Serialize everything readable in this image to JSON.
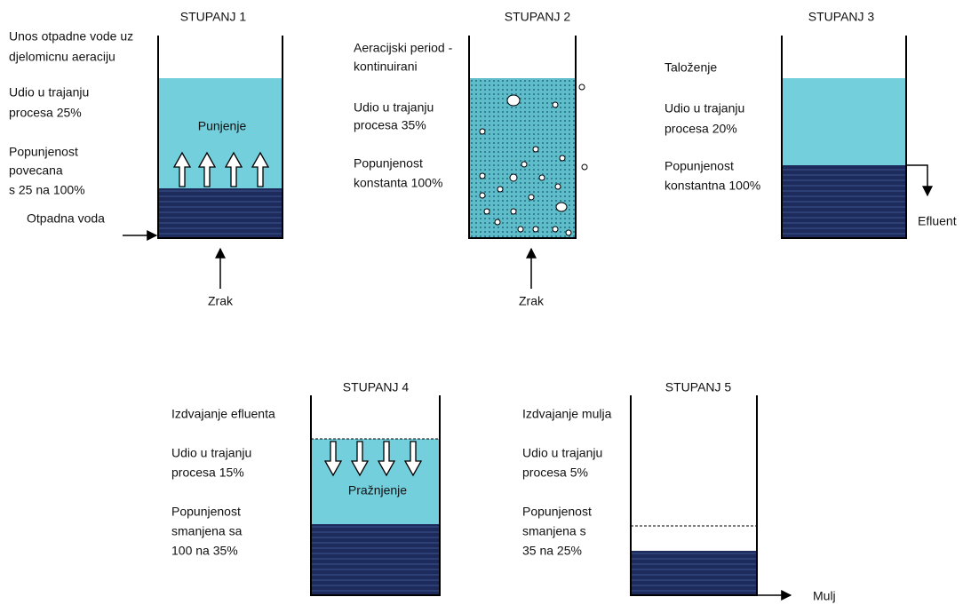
{
  "stages": [
    {
      "title": "STUPANJ 1",
      "description": [
        "Unos otpadne vode uz",
        "djelomicnu aeraciju",
        "Udio u trajanju",
        "procesa 25%",
        "Popunjenost",
        "povecana",
        "s 25 na 100%"
      ],
      "tank_label": "Punjenje",
      "inlet_label": "Otpadna voda",
      "air_label": "Zrak"
    },
    {
      "title": "STUPANJ 2",
      "description": [
        "Aeracijski period -",
        "kontinuirani",
        "Udio u trajanju",
        "procesa 35%",
        "Popunjenost",
        "konstanta 100%"
      ],
      "air_label": "Zrak"
    },
    {
      "title": "STUPANJ 3",
      "description": [
        "Taloženje",
        "Udio u trajanju",
        "procesa 20%",
        "Popunjenost",
        "konstantna 100%"
      ],
      "outlet_label": "Efluent"
    },
    {
      "title": "STUPANJ 4",
      "description": [
        "Izdvajanje efluenta",
        "Udio u trajanju",
        "procesa 15%",
        "Popunjenost",
        "smanjena sa",
        "100 na 35%"
      ],
      "tank_label": "Pražnjenje"
    },
    {
      "title": "STUPANJ 5",
      "description": [
        "Izdvajanje mulja",
        "Udio u trajanju",
        "procesa 5%",
        "Popunjenost",
        "smanjena s",
        "35 na 25%"
      ],
      "outlet_label": "Mulj"
    }
  ]
}
